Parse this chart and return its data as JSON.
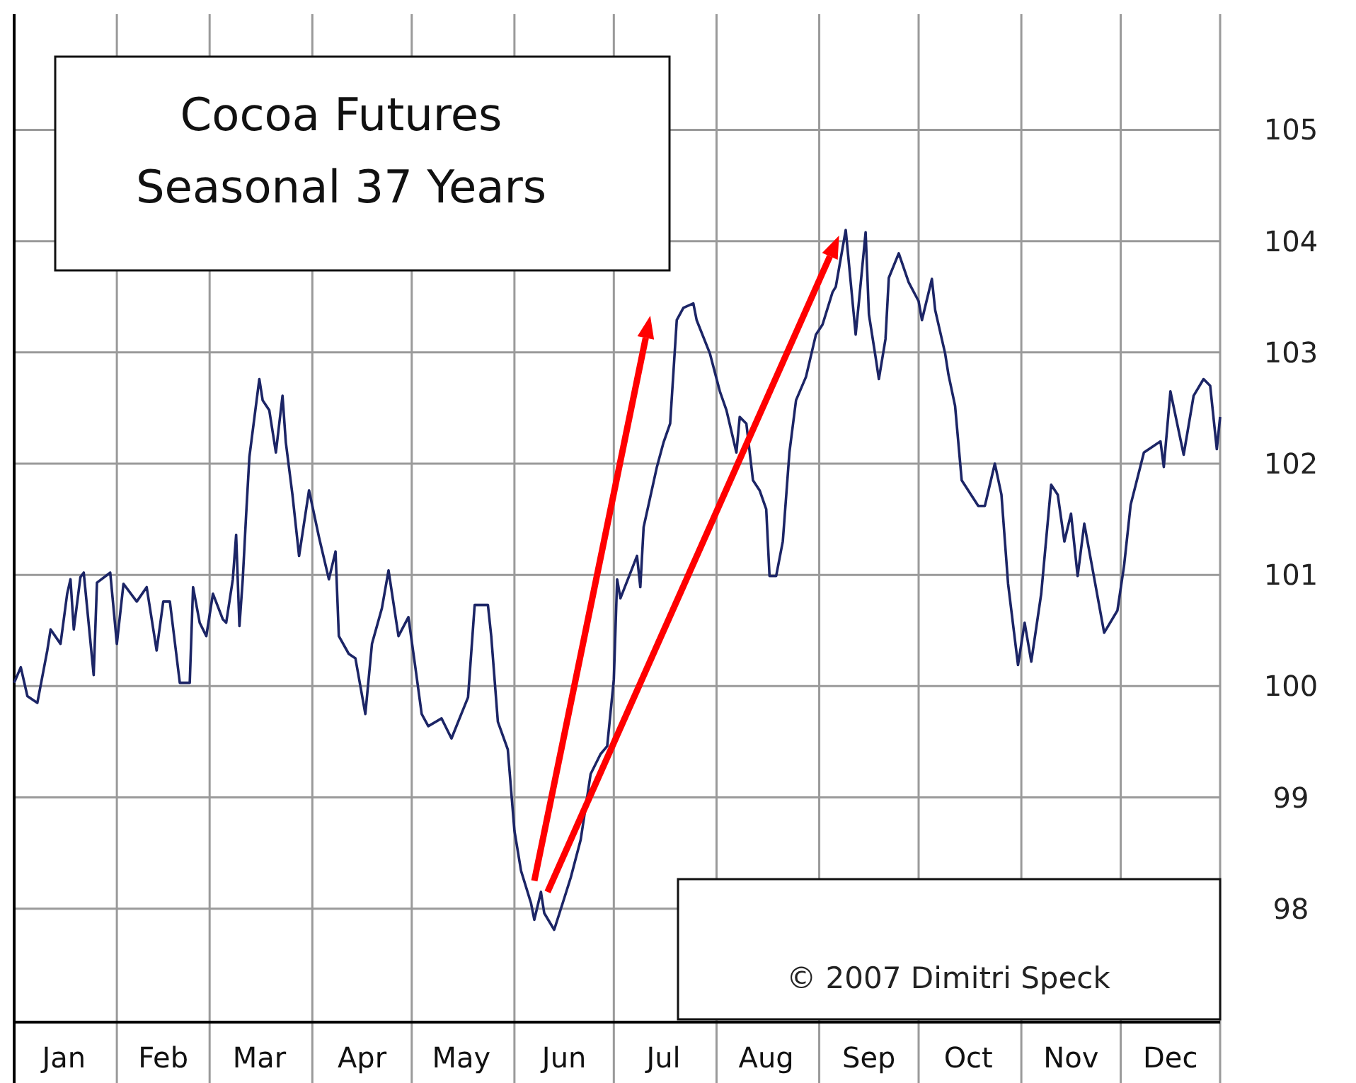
{
  "chart_data": {
    "type": "line",
    "title": "Cocoa Futures",
    "subtitle": "Seasonal 37 Years",
    "annotations": [
      "© 2007   Dimitri Speck"
    ],
    "x": [
      "--01-01",
      "--01-03",
      "--01-05",
      "--01-08",
      "--01-11",
      "--01-12",
      "--01-15",
      "--01-17",
      "--01-18",
      "--01-19",
      "--01-21",
      "--01-22",
      "--01-25",
      "--01-26",
      "--01-30",
      "--02-01",
      "--02-03",
      "--02-07",
      "--02-10",
      "--02-13",
      "--02-15",
      "--02-17",
      "--02-20",
      "--02-23",
      "--02-24",
      "--02-26",
      "--02-28",
      "--03-02",
      "--03-05",
      "--03-06",
      "--03-08",
      "--03-09",
      "--03-10",
      "--03-11",
      "--03-12",
      "--03-13",
      "--03-16",
      "--03-17",
      "--03-19",
      "--03-21",
      "--03-23",
      "--03-24",
      "--03-26",
      "--03-28",
      "--03-31",
      "--04-03",
      "--04-06",
      "--04-08",
      "--04-09",
      "--04-12",
      "--04-14",
      "--04-17",
      "--04-19",
      "--04-22",
      "--04-24",
      "--04-27",
      "--04-30",
      "--05-02",
      "--05-04",
      "--05-06",
      "--05-10",
      "--05-13",
      "--05-18",
      "--05-20",
      "--05-24",
      "--05-25",
      "--05-27",
      "--05-30",
      "--06-01",
      "--06-03",
      "--06-06",
      "--06-07",
      "--06-09",
      "--06-10",
      "--06-13",
      "--06-16",
      "--06-18",
      "--06-21",
      "--06-24",
      "--06-27",
      "--06-29",
      "--07-01",
      "--07-02",
      "--07-03",
      "--07-08",
      "--07-09",
      "--07-10",
      "--07-14",
      "--07-16",
      "--07-18",
      "--07-20",
      "--07-22",
      "--07-25",
      "--07-26",
      "--07-30",
      "--08-02",
      "--08-04",
      "--08-07",
      "--08-08",
      "--08-10",
      "--08-12",
      "--08-14",
      "--08-16",
      "--08-17",
      "--08-19",
      "--08-21",
      "--08-23",
      "--08-25",
      "--08-28",
      "--08-31",
      "--09-02",
      "--09-05",
      "--09-06",
      "--09-09",
      "--09-12",
      "--09-13",
      "--09-15",
      "--09-16",
      "--09-18",
      "--09-19",
      "--09-21",
      "--09-22",
      "--09-25",
      "--09-28",
      "--10-01",
      "--10-02",
      "--10-05",
      "--10-06",
      "--10-09",
      "--10-10",
      "--10-12",
      "--10-14",
      "--10-19",
      "--10-21",
      "--10-24",
      "--10-26",
      "--10-28",
      "--10-31",
      "--11-02",
      "--11-04",
      "--11-07",
      "--11-10",
      "--11-12",
      "--11-14",
      "--11-16",
      "--11-18",
      "--11-20",
      "--11-26",
      "--11-30",
      "--12-02",
      "--12-04",
      "--12-08",
      "--12-13",
      "--12-14",
      "--12-16",
      "--12-20",
      "--12-23",
      "--12-26",
      "--12-28",
      "--12-30",
      "--12-31"
    ],
    "series": [
      {
        "color": "#1c2566",
        "values": [
          100.03,
          100.17,
          99.91,
          99.85,
          100.32,
          100.51,
          100.38,
          100.83,
          100.96,
          100.51,
          100.98,
          101.02,
          100.1,
          100.93,
          101.02,
          100.38,
          100.92,
          100.76,
          100.89,
          100.32,
          100.76,
          100.76,
          100.03,
          100.03,
          100.89,
          100.57,
          100.45,
          100.83,
          100.6,
          100.57,
          100.96,
          101.36,
          100.54,
          100.96,
          101.53,
          102.06,
          102.76,
          102.57,
          102.48,
          102.1,
          102.61,
          102.19,
          101.72,
          101.17,
          101.76,
          101.34,
          100.96,
          101.21,
          100.45,
          100.29,
          100.25,
          99.75,
          100.38,
          100.7,
          101.04,
          100.45,
          100.62,
          100.19,
          99.75,
          99.64,
          99.71,
          99.53,
          99.9,
          100.73,
          100.73,
          100.45,
          99.68,
          99.43,
          98.7,
          98.34,
          98.05,
          97.9,
          98.15,
          97.96,
          97.81,
          98.09,
          98.28,
          98.62,
          99.21,
          99.39,
          99.46,
          100.06,
          100.96,
          100.79,
          101.17,
          100.89,
          101.43,
          101.97,
          102.19,
          102.36,
          103.29,
          103.4,
          103.44,
          103.29,
          102.99,
          102.65,
          102.48,
          102.1,
          102.42,
          102.36,
          101.85,
          101.76,
          101.59,
          100.99,
          100.99,
          101.3,
          102.1,
          102.57,
          102.78,
          103.16,
          103.25,
          103.54,
          103.59,
          104.1,
          103.16,
          103.46,
          104.08,
          103.34,
          102.96,
          102.76,
          103.12,
          103.67,
          103.89,
          103.63,
          103.46,
          103.29,
          103.66,
          103.38,
          102.99,
          102.8,
          102.52,
          101.85,
          101.62,
          101.62,
          102,
          101.72,
          100.92,
          100.19,
          100.57,
          100.22,
          100.83,
          101.81,
          101.72,
          101.3,
          101.55,
          100.99,
          101.46,
          100.48,
          100.68,
          101.08,
          101.63,
          102.1,
          102.2,
          101.97,
          102.65,
          102.08,
          102.61,
          102.76,
          102.7,
          102.13,
          102.42
        ]
      }
    ],
    "xlim": [
      "--01-01",
      "--12-31"
    ],
    "xticks": [
      {
        "value": "--01-01",
        "label": null
      },
      {
        "value": "--01-16",
        "label": "Jan"
      },
      {
        "value": "--02-01",
        "label": null
      },
      {
        "value": "--02-15",
        "label": "Feb"
      },
      {
        "value": "--03-01",
        "label": null
      },
      {
        "value": "--03-16",
        "label": "Mar"
      },
      {
        "value": "--04-01",
        "label": null
      },
      {
        "value": "--04-16",
        "label": "Apr"
      },
      {
        "value": "--05-01",
        "label": null
      },
      {
        "value": "--05-16",
        "label": "May"
      },
      {
        "value": "--06-01",
        "label": null
      },
      {
        "value": "--06-16",
        "label": "Jun"
      },
      {
        "value": "--07-01",
        "label": null
      },
      {
        "value": "--07-16",
        "label": "Jul"
      },
      {
        "value": "--08-01",
        "label": null
      },
      {
        "value": "--08-16",
        "label": "Aug"
      },
      {
        "value": "--09-01",
        "label": null
      },
      {
        "value": "--09-16",
        "label": "Sep"
      },
      {
        "value": "--10-01",
        "label": null
      },
      {
        "value": "--10-16",
        "label": "Oct"
      },
      {
        "value": "--11-01",
        "label": null
      },
      {
        "value": "--11-16",
        "label": "Nov"
      },
      {
        "value": "--12-01",
        "label": null
      },
      {
        "value": "--12-16",
        "label": "Dec"
      },
      {
        "value": "--12-31",
        "label": null
      }
    ],
    "ylim": [
      96.98,
      106.04
    ],
    "yticks": [
      98,
      99,
      100,
      101,
      102,
      103,
      104,
      105
    ],
    "grid": true,
    "marker": "none",
    "line_style": "solid"
  }
}
